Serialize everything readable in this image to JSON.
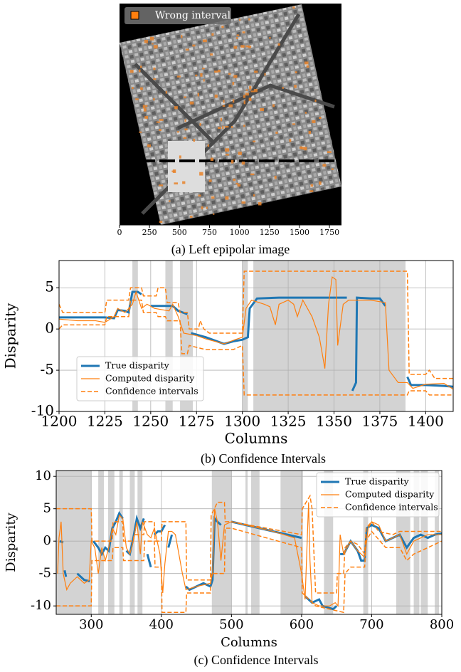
{
  "chart_data": [
    {
      "type": "image",
      "caption": "(a) Left epipolar image",
      "xlim": [
        0,
        1850
      ],
      "xticks": [
        0,
        250,
        500,
        750,
        1000,
        1250,
        1500,
        1750
      ],
      "legend_entries": [
        {
          "name": "Wrong interval",
          "color": "#ff7f0e"
        }
      ]
    },
    {
      "type": "line",
      "caption": "(b) Confidence Intervals",
      "xlabel": "Columns",
      "ylabel": "Disparity",
      "xlim": [
        1200,
        1415
      ],
      "ylim": [
        -10,
        8.3
      ],
      "xticks": [
        1200,
        1225,
        1250,
        1275,
        1300,
        1325,
        1350,
        1375,
        1400
      ],
      "yticks": [
        -10,
        -5,
        0,
        5
      ],
      "grid": true,
      "legend": "lower left",
      "shade_color": "#d3d3d3",
      "shaded": [
        [
          1240,
          1243
        ],
        [
          1258,
          1262
        ],
        [
          1266,
          1273
        ],
        [
          1300,
          1303
        ],
        [
          1306,
          1389
        ]
      ],
      "series": [
        {
          "name": "True disparity",
          "color": "#1f77b4",
          "style": "solid",
          "linewidth": 3,
          "x": [
            1200,
            1225,
            1230,
            1232,
            1236,
            1238,
            1240,
            1243,
            1245,
            1247,
            1250,
            1262,
            1265,
            1270,
            1271,
            1272,
            1280,
            1290,
            1295,
            1300,
            1303,
            1304,
            1308,
            1320,
            1340,
            1357,
            1358,
            1360,
            1362,
            1362.5,
            1370,
            1375,
            1378,
            1380,
            1390,
            1392,
            1400,
            1410,
            1415
          ],
          "values": [
            1.4,
            1.4,
            1.3,
            2.3,
            2.2,
            2.0,
            4.5,
            4.5,
            4.2,
            null,
            2.8,
            2.8,
            2.2,
            1.8,
            null,
            -0.5,
            -1.0,
            -1.8,
            -1.5,
            -1.3,
            -1.0,
            2.5,
            3.7,
            3.8,
            3.8,
            3.8,
            null,
            -7.5,
            -6.5,
            3.8,
            3.7,
            3.7,
            2.8,
            null,
            -5.8,
            -6.8,
            -6.8,
            -6.9,
            -7.0
          ]
        },
        {
          "name": "Computed disparity",
          "color": "#ff7f0e",
          "style": "solid",
          "linewidth": 1.2,
          "x": [
            1200,
            1210,
            1220,
            1225,
            1230,
            1232,
            1236,
            1240,
            1242,
            1245,
            1248,
            1252,
            1260,
            1262,
            1265,
            1268,
            1275,
            1280,
            1290,
            1296,
            1300,
            1302,
            1305,
            1312,
            1315,
            1318,
            1320,
            1325,
            1328,
            1330,
            1333,
            1338,
            1342,
            1345,
            1347,
            1349,
            1351,
            1352,
            1355,
            1358,
            1362,
            1370,
            1378,
            1380,
            1385,
            1390,
            1393,
            1400,
            1410,
            1415
          ],
          "values": [
            1.2,
            1.0,
            1.0,
            0.8,
            1.5,
            2.5,
            2.0,
            3.0,
            4.5,
            2.5,
            3.0,
            2.5,
            2.2,
            3.0,
            1.5,
            -0.5,
            -0.8,
            -1.2,
            -1.8,
            -1.3,
            -1.0,
            2.5,
            3.5,
            3.0,
            2.7,
            0.5,
            3.0,
            3.5,
            3.0,
            1.5,
            3.5,
            1.5,
            -1.0,
            -4.8,
            3.0,
            6.3,
            6.0,
            -2.0,
            3.0,
            3.5,
            3.5,
            3.5,
            3.2,
            -5.0,
            -6.5,
            -6.5,
            -7.2,
            -6.7,
            -6.6,
            -7.3
          ]
        },
        {
          "name": "Confidence intervals",
          "color": "#ff7f0e",
          "style": "dashed",
          "linewidth": 1.5,
          "bounds": [
            {
              "x": [
                1200,
                1202,
                1225,
                1226,
                1238,
                1239,
                1245,
                1246,
                1253,
                1254,
                1258,
                1259,
                1265,
                1266,
                1270,
                1271,
                1276,
                1277,
                1279,
                1282,
                1300,
                1301,
                1390,
                1391,
                1400,
                1402,
                1405,
                1415
              ],
              "values": [
                3,
                2,
                2,
                3.5,
                3.5,
                5,
                5,
                4,
                4,
                5,
                5,
                3.2,
                3.2,
                2,
                2,
                0,
                0,
                1,
                0,
                -0.5,
                -0.5,
                7,
                7,
                -5.5,
                -5.5,
                -5,
                -6,
                -6
              ]
            },
            {
              "x": [
                1200,
                1202,
                1225,
                1226,
                1238,
                1239,
                1245,
                1246,
                1253,
                1254,
                1258,
                1259,
                1266,
                1267,
                1270,
                1271,
                1280,
                1295,
                1300,
                1301,
                1390,
                1391,
                1400,
                1402,
                1415
              ],
              "values": [
                0,
                0.5,
                0.5,
                1.5,
                1.5,
                3.5,
                3.5,
                2,
                2,
                1.5,
                1.5,
                1,
                1,
                -3,
                -3,
                -2,
                -2.5,
                -2.5,
                -2,
                -8,
                -8,
                -7.5,
                -7.5,
                -8,
                -8
              ]
            }
          ]
        }
      ]
    },
    {
      "type": "line",
      "caption": "(c) Confidence Intervals",
      "xlabel": "Columns",
      "ylabel": "Disparity",
      "xlim": [
        250,
        800
      ],
      "ylim": [
        -11.3,
        10.9
      ],
      "xticks": [
        300,
        400,
        500,
        600,
        700,
        800
      ],
      "yticks": [
        -10,
        -5,
        0,
        5,
        10
      ],
      "grid": true,
      "legend": "upper right",
      "shade_color": "#d3d3d3",
      "shaded": [
        [
          250,
          300
        ],
        [
          310,
          318
        ],
        [
          324,
          333
        ],
        [
          340,
          345
        ],
        [
          355,
          362
        ],
        [
          366,
          373
        ],
        [
          472,
          500
        ],
        [
          520,
          523
        ],
        [
          528,
          540
        ],
        [
          570,
          602
        ],
        [
          632,
          645
        ],
        [
          688,
          695
        ],
        [
          735,
          755
        ],
        [
          760,
          768
        ],
        [
          770,
          780
        ],
        [
          790,
          796
        ]
      ],
      "series": [
        {
          "name": "True disparity",
          "color": "#1f77b4",
          "style": "solid",
          "linewidth": 3,
          "x": [
            255,
            260,
            261,
            262,
            264,
            270,
            280,
            290,
            298,
            300,
            303,
            310,
            315,
            320,
            325,
            330,
            335,
            340,
            345,
            347,
            350,
            355,
            360,
            365,
            370,
            375,
            377,
            380,
            385,
            387,
            390,
            395,
            400,
            405,
            407,
            410,
            415,
            425,
            435,
            440,
            450,
            460,
            470,
            473,
            476,
            480,
            485,
            487,
            490,
            495,
            500,
            520,
            540,
            560,
            580,
            600,
            602,
            605,
            615,
            625,
            630,
            645,
            650,
            652,
            655,
            660,
            670,
            680,
            685,
            690,
            693,
            700,
            710,
            715,
            720,
            730,
            740,
            750,
            760,
            770,
            780,
            790,
            800
          ],
          "values": [
            0,
            -0.2,
            null,
            -4.5,
            -5.5,
            null,
            -5,
            -6,
            -6.2,
            null,
            0,
            -1,
            -2,
            -1,
            -1.5,
            2,
            3,
            4.3,
            3.5,
            null,
            -1.5,
            -2,
            0.5,
            3.5,
            2,
            3.5,
            null,
            -2,
            -4,
            null,
            1,
            1.5,
            1.5,
            2.5,
            null,
            -1,
            1,
            null,
            -7,
            -7.5,
            -7,
            -6.5,
            -7,
            -6,
            3.5,
            3,
            2.5,
            null,
            -3.5,
            null,
            3,
            2.5,
            2,
            1.5,
            1,
            0.5,
            null,
            -8.5,
            -9.5,
            -9,
            -10,
            -10.5,
            -10,
            null,
            -2,
            -2,
            0,
            -1.5,
            -3,
            -3,
            2,
            2.5,
            2,
            1,
            0,
            0.5,
            1,
            -1,
            0.5,
            1,
            0.5,
            1,
            1.2
          ]
        },
        {
          "name": "Computed disparity",
          "color": "#ff7f0e",
          "style": "solid",
          "linewidth": 1.2,
          "x": [
            252,
            254,
            257,
            260,
            265,
            270,
            280,
            290,
            297,
            300,
            305,
            310,
            315,
            320,
            325,
            330,
            335,
            340,
            345,
            350,
            355,
            360,
            365,
            370,
            373,
            380,
            385,
            390,
            398,
            402,
            405,
            410,
            415,
            420,
            430,
            435,
            450,
            470,
            473,
            476,
            480,
            485,
            490,
            500,
            520,
            540,
            560,
            590,
            600,
            605,
            610,
            612,
            615,
            625,
            640,
            648,
            652,
            655,
            660,
            665,
            670,
            680,
            690,
            695,
            700,
            710,
            720,
            740,
            750,
            760,
            780,
            800
          ],
          "values": [
            -5,
            0.5,
            3,
            -5,
            -7.5,
            -6.5,
            -5.5,
            -6.5,
            -6,
            0,
            -1,
            -5,
            -1,
            -3,
            -1,
            2,
            1,
            4,
            3.5,
            -1,
            -2,
            0,
            3,
            -2,
            3,
            1,
            0.5,
            2,
            -2,
            -8,
            -3.5,
            1.5,
            1.5,
            1,
            -5,
            -7.5,
            -7,
            -6.5,
            -5,
            5,
            3,
            -3,
            2.5,
            3,
            2.5,
            2,
            1.5,
            0.5,
            -5,
            -9,
            6,
            -3,
            -9.5,
            -10,
            -10,
            -9.5,
            -10,
            1,
            -2,
            -1,
            0,
            -1.5,
            -2.5,
            2,
            3,
            2.5,
            0,
            1,
            -2,
            0,
            1,
            1
          ]
        },
        {
          "name": "Confidence intervals",
          "color": "#ff7f0e",
          "style": "dashed",
          "linewidth": 1.5,
          "bounds": [
            {
              "x": [
                250,
                300,
                301,
                330,
                331,
                345,
                346,
                360,
                361,
                375,
                376,
                390,
                391,
                400,
                401,
                435,
                436,
                470,
                471,
                480,
                490,
                491,
                500,
                600,
                601,
                612,
                615,
                620,
                650,
                651,
                660,
                662,
                670,
                680,
                690,
                692,
                700,
                710,
                730,
                740,
                800
              ],
              "values": [
                5,
                5,
                0,
                0,
                3,
                3,
                0,
                0,
                1,
                1,
                3,
                3,
                0,
                0,
                3,
                3,
                -6,
                -6,
                4,
                6,
                6,
                3,
                3,
                1,
                5,
                7,
                5,
                -8,
                -8,
                -5,
                -5,
                -1,
                0,
                -0.5,
                -2,
                2,
                3,
                1.5,
                1,
                1.5,
                1.5
              ]
            },
            {
              "x": [
                250,
                300,
                301,
                330,
                331,
                345,
                346,
                375,
                376,
                390,
                391,
                400,
                401,
                435,
                436,
                470,
                471,
                490,
                491,
                500,
                600,
                601,
                620,
                660,
                662,
                670,
                690,
                692,
                700,
                720,
                740,
                750,
                760,
                800
              ],
              "values": [
                -10,
                -10,
                -3,
                -3,
                -1,
                -1,
                -3,
                -3,
                0,
                0,
                -4,
                -4,
                -11,
                -11,
                -8,
                -8,
                -5,
                -5,
                2,
                2,
                -1,
                -8,
                -10,
                -11,
                -5,
                -4,
                -4,
                0,
                1.5,
                -1,
                -1,
                -3,
                -2,
                0
              ]
            }
          ]
        }
      ]
    }
  ]
}
